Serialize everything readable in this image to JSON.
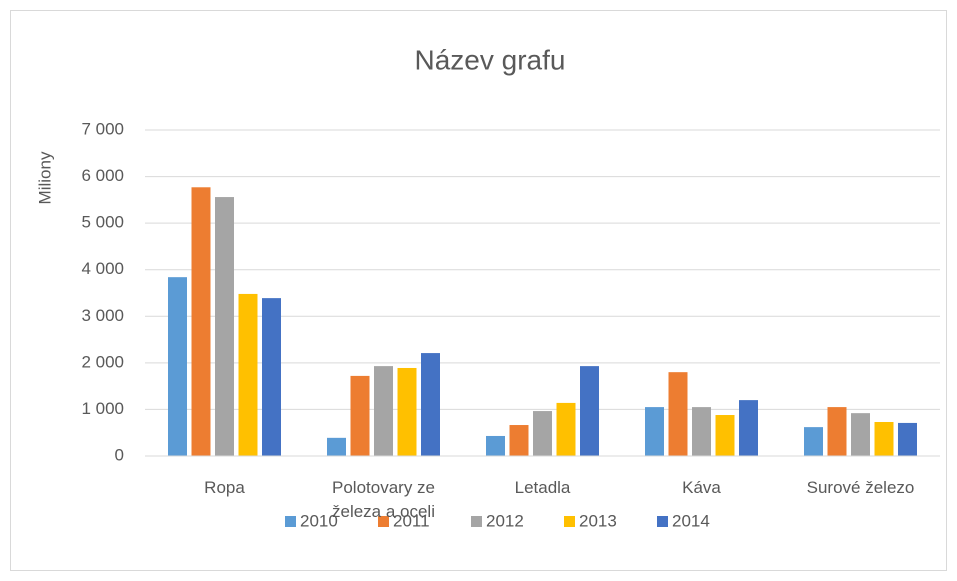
{
  "chart_data": {
    "type": "bar",
    "title": "Název grafu",
    "y_label": "Miliony",
    "categories": [
      "Ropa",
      "Polotovary ze železa a oceli",
      "Letadla",
      "Káva",
      "Surové železo"
    ],
    "series": [
      {
        "name": "2010",
        "color": "#5b9bd5",
        "values": [
          3840,
          390,
          430,
          1050,
          620
        ]
      },
      {
        "name": "2011",
        "color": "#ed7d31",
        "values": [
          5770,
          1720,
          665,
          1800,
          1050
        ]
      },
      {
        "name": "2012",
        "color": "#a5a5a5",
        "values": [
          5560,
          1930,
          965,
          1050,
          920
        ]
      },
      {
        "name": "2013",
        "color": "#ffc000",
        "values": [
          3480,
          1890,
          1140,
          880,
          730
        ]
      },
      {
        "name": "2014",
        "color": "#4472c4",
        "values": [
          3390,
          2210,
          1930,
          1200,
          710
        ]
      }
    ],
    "ylim": [
      0,
      7000
    ],
    "yticks": [
      0,
      {
        "value": 1000,
        "label": "1 000"
      },
      {
        "value": 2000,
        "label": "2 000"
      },
      {
        "value": 3000,
        "label": "3 000"
      },
      {
        "value": 4000,
        "label": "4 000"
      },
      {
        "value": 5000,
        "label": "5 000"
      },
      {
        "value": 6000,
        "label": "6 000"
      },
      {
        "value": 7000,
        "label": "7 000"
      }
    ],
    "grid": true,
    "legend": "bottom"
  }
}
